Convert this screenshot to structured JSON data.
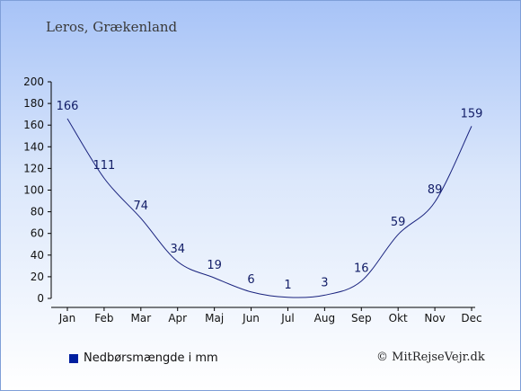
{
  "header": {
    "location": "Leros, Grækenland"
  },
  "legend": {
    "label": "Nedbørsmængde i mm",
    "color": "#001f9f"
  },
  "credit": {
    "text": "© MitRejseVejr.dk"
  },
  "line_color": "#1a237e",
  "chart_data": {
    "type": "line",
    "categories": [
      "Jan",
      "Feb",
      "Mar",
      "Apr",
      "Maj",
      "Jun",
      "Jul",
      "Aug",
      "Sep",
      "Okt",
      "Nov",
      "Dec"
    ],
    "series": [
      {
        "name": "Nedbørsmængde i mm",
        "values": [
          166,
          111,
          74,
          34,
          19,
          6,
          1,
          3,
          16,
          59,
          89,
          159
        ]
      }
    ],
    "yticks": [
      0,
      20,
      40,
      60,
      80,
      100,
      120,
      140,
      160,
      180,
      200
    ],
    "ylim": [
      0,
      200
    ],
    "grid": false,
    "data_labels": true
  }
}
